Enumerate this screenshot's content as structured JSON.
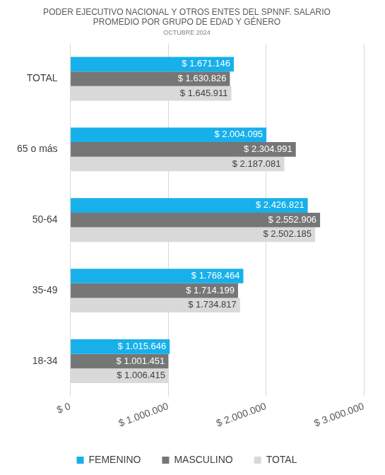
{
  "chart_data": {
    "type": "bar",
    "orientation": "horizontal",
    "title": [
      "PODER EJECUTIVO NACIONAL Y OTROS ENTES DEL SPNNF. SALARIO",
      "PROMEDIO POR GRUPO DE EDAD Y GÉNERO"
    ],
    "subtitle": "OCTUBRE 2024",
    "categories": [
      "TOTAL",
      "65 o más",
      "50-64",
      "35-49",
      "18-34"
    ],
    "series": [
      {
        "name": "FEMENINO",
        "color": "#17b0ea",
        "values": [
          1671146,
          2004095,
          2426821,
          1768464,
          1015646
        ],
        "value_labels": [
          "$ 1.671.146",
          "$ 2.004.095",
          "$ 2.426.821",
          "$ 1.768.464",
          "$ 1.015.646"
        ]
      },
      {
        "name": "MASCULINO",
        "color": "#767676",
        "values": [
          1630826,
          2304991,
          2552906,
          1714199,
          1001451
        ],
        "value_labels": [
          "$ 1.630.826",
          "$ 2.304.991",
          "$ 2.552.906",
          "$ 1.714.199",
          "$ 1.001.451"
        ]
      },
      {
        "name": "TOTAL",
        "color": "#d9d9d9",
        "values": [
          1645911,
          2187081,
          2502185,
          1734817,
          1006415
        ],
        "value_labels": [
          "$ 1.645.911",
          "$ 2.187.081",
          "$ 2.502.185",
          "$ 1.734.817",
          "$ 1.006.415"
        ]
      }
    ],
    "xlim": [
      0,
      3000000
    ],
    "xticks": [
      {
        "value": 0,
        "label": "$ 0"
      },
      {
        "value": 1000000,
        "label": "$ 1.000.000"
      },
      {
        "value": 2000000,
        "label": "$ 2.000.000"
      },
      {
        "value": 3000000,
        "label": "$ 3.000.000"
      }
    ],
    "grid": true,
    "legend": "bottom",
    "data_labels": true
  }
}
